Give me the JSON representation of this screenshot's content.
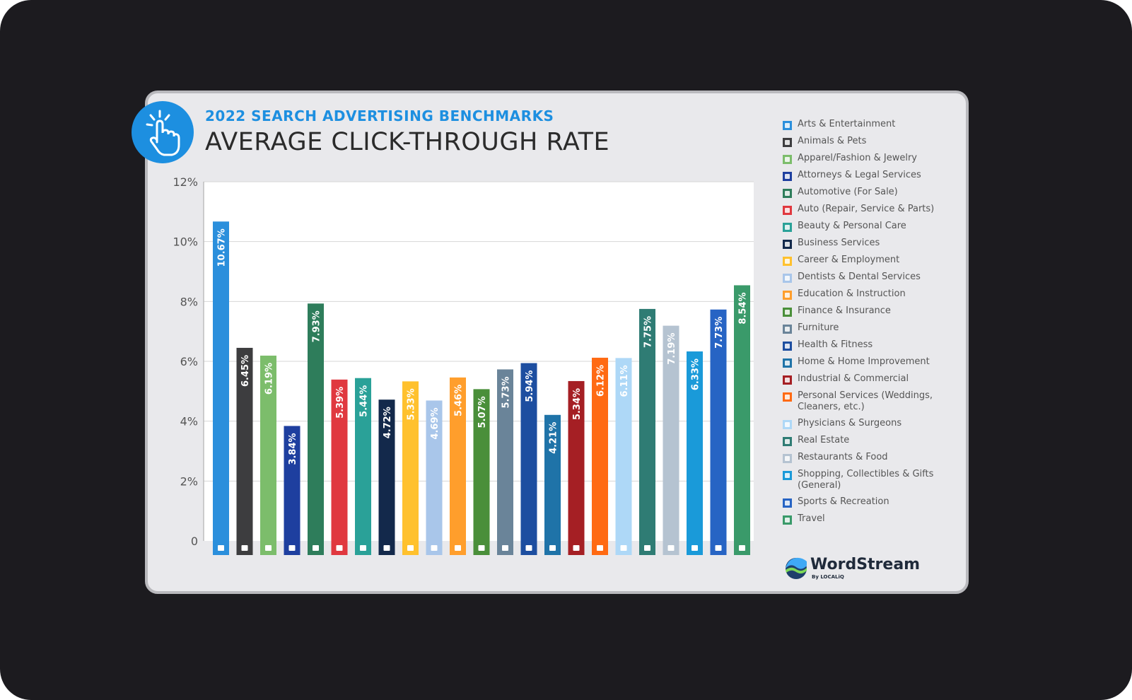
{
  "header": {
    "subtitle": "2022 SEARCH ADVERTISING BENCHMARKS",
    "title": "AVERAGE CLICK-THROUGH RATE"
  },
  "brand": {
    "name": "WordStream",
    "byline": "By LOCALiQ",
    "accent": "#1d8fe0"
  },
  "icons": {
    "badge": "pointing-hand-click-icon"
  },
  "chart_data": {
    "type": "bar",
    "title": "AVERAGE CLICK-THROUGH RATE",
    "xlabel": "",
    "ylabel": "",
    "ylim": [
      0,
      12
    ],
    "yticks": [
      {
        "value": 0,
        "label": "0"
      },
      {
        "value": 2,
        "label": "2%"
      },
      {
        "value": 4,
        "label": "4%"
      },
      {
        "value": 6,
        "label": "6%"
      },
      {
        "value": 8,
        "label": "8%"
      },
      {
        "value": 10,
        "label": "10%"
      },
      {
        "value": 12,
        "label": "12%"
      }
    ],
    "grid": true,
    "legend_position": "right",
    "categories": [
      "Arts & Entertainment",
      "Animals & Pets",
      "Apparel/Fashion & Jewelry",
      "Attorneys & Legal Services",
      "Automotive (For Sale)",
      "Auto (Repair, Service & Parts)",
      "Beauty & Personal Care",
      "Business Services",
      "Career & Employment",
      "Dentists & Dental Services",
      "Education & Instruction",
      "Finance & Insurance",
      "Furniture",
      "Health & Fitness",
      "Home & Home Improvement",
      "Industrial & Commercial",
      "Personal Services (Weddings, Cleaners, etc.)",
      "Physicians & Surgeons",
      "Real Estate",
      "Restaurants & Food",
      "Shopping, Collectibles & Gifts (General)",
      "Sports & Recreation",
      "Travel"
    ],
    "values": [
      10.67,
      6.45,
      6.19,
      3.84,
      7.93,
      5.39,
      5.44,
      4.72,
      5.33,
      4.69,
      5.46,
      5.07,
      5.73,
      5.94,
      4.21,
      5.34,
      6.12,
      6.11,
      7.75,
      7.19,
      6.33,
      7.73,
      8.54
    ],
    "data_labels": [
      "10.67%",
      "6.45%",
      "6.19%",
      "3.84%",
      "7.93%",
      "5.39%",
      "5.44%",
      "4.72%",
      "5.33%",
      "4.69%",
      "5.46%",
      "5.07%",
      "5.73%",
      "5.94%",
      "4.21%",
      "5.34%",
      "6.12%",
      "6.11%",
      "7.75%",
      "7.19%",
      "6.33%",
      "7.73%",
      "8.54%"
    ],
    "colors": [
      "#2b8fdc",
      "#3d3d3f",
      "#7cbd6b",
      "#1e3f9f",
      "#2e7d5b",
      "#e0383f",
      "#2aa198",
      "#13294b",
      "#ffc12e",
      "#a9c6ea",
      "#ff9e2c",
      "#4a8f3a",
      "#6a8499",
      "#1d4ea0",
      "#1f73a8",
      "#a51f24",
      "#ff6a13",
      "#aed8f7",
      "#2f7c74",
      "#b5c3d1",
      "#1a9ad9",
      "#2764c4",
      "#3a9a6a"
    ],
    "bar_icons": [
      "picture-icon",
      "paw-icon",
      "shirt-icon",
      "gavel-icon",
      "car-key-icon",
      "car-icon",
      "brush-icon",
      "newspaper-icon",
      "briefcase-icon",
      "tooth-icon",
      "graduation-cap-icon",
      "money-icon",
      "sofa-icon",
      "dumbbell-icon",
      "house-icon",
      "factory-icon",
      "hand-icon",
      "medical-cross-icon",
      "building-icon",
      "fork-knife-icon",
      "gift-icon",
      "ball-icon",
      "airplane-icon"
    ]
  },
  "legend": {
    "items": [
      "Arts & Entertainment",
      "Animals & Pets",
      "Apparel/Fashion & Jewelry",
      "Attorneys & Legal Services",
      "Automotive (For Sale)",
      "Auto (Repair, Service & Parts)",
      "Beauty & Personal Care",
      "Business Services",
      "Career & Employment",
      "Dentists & Dental Services",
      "Education & Instruction",
      "Finance & Insurance",
      "Furniture",
      "Health & Fitness",
      "Home & Home Improvement",
      "Industrial & Commercial",
      "Personal Services (Weddings, Cleaners, etc.)",
      "Physicians & Surgeons",
      "Real Estate",
      "Restaurants & Food",
      "Shopping, Collectibles & Gifts (General)",
      "Sports & Recreation",
      "Travel"
    ]
  }
}
